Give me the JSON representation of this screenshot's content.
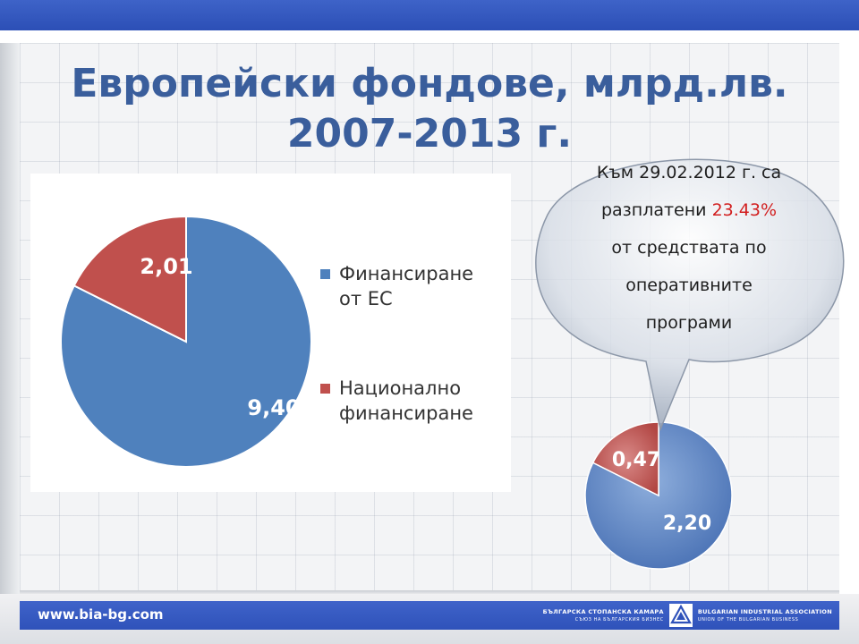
{
  "slide": {
    "title_line1": "Европейски фондове, млрд.лв.",
    "title_line2": "2007-2013 г."
  },
  "chart_data": [
    {
      "type": "pie",
      "categories": [
        "Финансиране от ЕС",
        "Национално финансиране"
      ],
      "values": [
        9.4,
        2.01
      ],
      "value_labels": [
        "9,40",
        "2,01"
      ],
      "colors": [
        "#4f81bd",
        "#c0504d"
      ],
      "legend": [
        {
          "lines": [
            "Финансиране",
            "от ЕС"
          ],
          "color": "#4f81bd"
        },
        {
          "lines": [
            "Национално",
            "финансиране"
          ],
          "color": "#c0504d"
        }
      ],
      "legend_position": "right"
    },
    {
      "type": "pie",
      "values": [
        2.2,
        0.47
      ],
      "value_labels": [
        "2,20",
        "0,47"
      ],
      "colors": [
        "#4f81bd",
        "#c0504d"
      ]
    }
  ],
  "callout": {
    "line1": "Към 29.02.2012 г. са",
    "line2_before": "разплатени ",
    "line2_highlight": "23.43%",
    "line3": "от средствата по",
    "line4": "оперативните",
    "line5": "програми",
    "highlight_color": "#d21f1f"
  },
  "footer": {
    "url": "www.bia-bg.com",
    "org_bg_line1": "БЪЛГАРСКА СТОПАНСКА КАМАРА",
    "org_bg_line2": "СЪЮЗ НА БЪЛГАРСКИЯ БИЗНЕС",
    "org_en_line1": "BULGARIAN INDUSTRIAL ASSOCIATION",
    "org_en_line2": "UNION OF THE BULGARIAN BUSINESS"
  }
}
